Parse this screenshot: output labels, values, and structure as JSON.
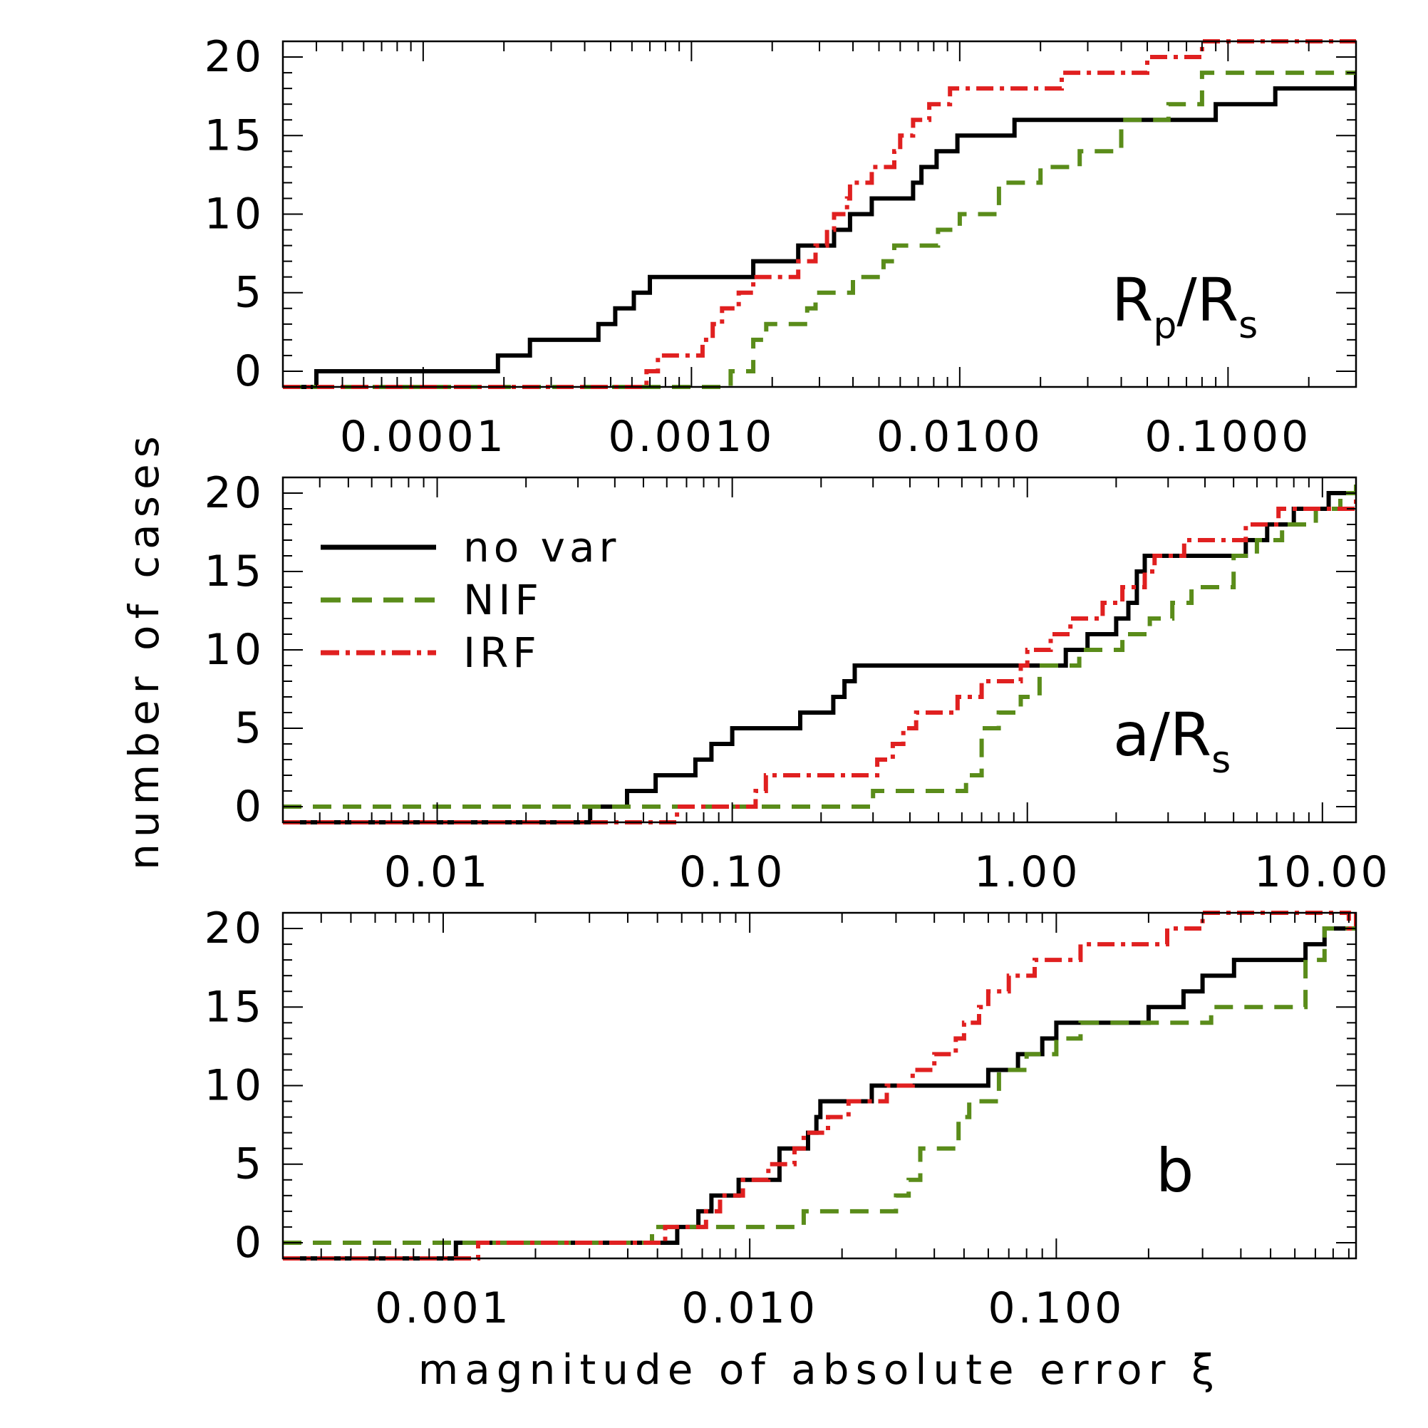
{
  "chart_data": {
    "type": "step",
    "ylabel": "number of cases",
    "xlabel": "magnitude of absolute error ξ",
    "legend": [
      {
        "name": "no var",
        "color": "#000000",
        "style": "solid"
      },
      {
        "name": "NIF",
        "color": "#5a8c1a",
        "style": "dashed"
      },
      {
        "name": "IRF",
        "color": "#e02020",
        "style": "dashdot"
      }
    ],
    "legend_location": "upper-left of middle panel",
    "panels": [
      {
        "label_main": "R",
        "label_sub1": "p",
        "label_mid": "/R",
        "label_sub2": "s",
        "xscale": "log",
        "xlim": [
          3e-05,
          0.3
        ],
        "ylim": [
          -1,
          21
        ],
        "yticks": [
          0,
          5,
          10,
          15,
          20
        ],
        "ytick_labels": [
          "0",
          "5",
          "10",
          "15",
          "20"
        ],
        "xticks": [
          0.0001,
          0.001,
          0.01,
          0.1
        ],
        "xtick_labels": [
          "0.0001",
          "0.0010",
          "0.0100",
          "0.1000"
        ],
        "series": [
          {
            "name": "no var",
            "x": [
              3e-05,
              4e-05,
              0.00019,
              0.00025,
              0.00045,
              0.00052,
              0.00061,
              0.0007,
              0.0017,
              0.0025,
              0.0034,
              0.0039,
              0.0047,
              0.0067,
              0.0072,
              0.0082,
              0.0098,
              0.016,
              0.09,
              0.15,
              0.3
            ],
            "y": [
              -1,
              0,
              1,
              2,
              3,
              4,
              5,
              6,
              7,
              8,
              9,
              10,
              11,
              12,
              13,
              14,
              15,
              16,
              17,
              18,
              19
            ]
          },
          {
            "name": "NIF",
            "x": [
              3e-05,
              0.0014,
              0.0017,
              0.0019,
              0.0027,
              0.0029,
              0.004,
              0.0052,
              0.0057,
              0.0083,
              0.01,
              0.014,
              0.02,
              0.028,
              0.04,
              0.06,
              0.08
            ],
            "y": [
              -1,
              0,
              2,
              3,
              4,
              5,
              6,
              7,
              8,
              9,
              10,
              12,
              13,
              14,
              16,
              17,
              19
            ]
          },
          {
            "name": "IRF",
            "x": [
              3e-05,
              0.00068,
              0.00075,
              0.0011,
              0.0012,
              0.0013,
              0.0015,
              0.0017,
              0.0025,
              0.0029,
              0.0032,
              0.0034,
              0.0038,
              0.0039,
              0.0047,
              0.0057,
              0.006,
              0.0067,
              0.0077,
              0.0083,
              0.0092,
              0.024,
              0.05,
              0.08
            ],
            "y": [
              -1,
              0,
              1,
              2,
              3,
              4,
              5,
              6,
              7,
              8,
              9,
              10,
              11,
              12,
              13,
              14,
              15,
              16,
              17,
              17,
              18,
              19,
              20,
              21
            ]
          }
        ]
      },
      {
        "label_main": "a/R",
        "label_sub1": "",
        "label_mid": "",
        "label_sub2": "s",
        "xscale": "log",
        "xlim": [
          0.003,
          13
        ],
        "ylim": [
          -1,
          21
        ],
        "yticks": [
          0,
          5,
          10,
          15,
          20
        ],
        "ytick_labels": [
          "0",
          "5",
          "10",
          "15",
          "20"
        ],
        "xticks": [
          0.01,
          0.1,
          1,
          10
        ],
        "xtick_labels": [
          "0.01",
          "0.10",
          "1.00",
          "10.00"
        ],
        "series": [
          {
            "name": "no var",
            "x": [
              0.003,
              0.033,
              0.044,
              0.055,
              0.075,
              0.085,
              0.1,
              0.17,
              0.22,
              0.24,
              0.26,
              0.32,
              1.35,
              1.6,
              2.0,
              2.2,
              2.35,
              2.5,
              5.5,
              6.5,
              8.0,
              10.5,
              13
            ],
            "y": [
              -1,
              0,
              1,
              2,
              3,
              4,
              5,
              6,
              7,
              8,
              9,
              9,
              10,
              11,
              12,
              13,
              15,
              16,
              17,
              18,
              19,
              20,
              20
            ]
          },
          {
            "name": "NIF",
            "x": [
              0.003,
              0.0033,
              0.3,
              0.62,
              0.7,
              0.8,
              0.95,
              1.1,
              1.5,
              2.1,
              2.6,
              3.1,
              3.6,
              5.0,
              6.0,
              7.3,
              9.5,
              11.5,
              13
            ],
            "y": [
              0,
              0,
              1,
              2,
              5,
              6,
              7,
              9,
              10,
              11,
              12,
              13,
              14,
              16,
              17,
              18,
              19,
              20,
              21
            ]
          },
          {
            "name": "IRF",
            "x": [
              0.003,
              0.065,
              0.12,
              0.13,
              0.31,
              0.35,
              0.38,
              0.42,
              0.58,
              0.7,
              0.95,
              1.0,
              1.2,
              1.4,
              1.8,
              2.1,
              2.5,
              2.7,
              3.4,
              5.5,
              7.1,
              11.5,
              13
            ],
            "y": [
              -1,
              0,
              1,
              2,
              3,
              4,
              5,
              6,
              7,
              8,
              9,
              10,
              11,
              12,
              13,
              14,
              15,
              16,
              17,
              18,
              19,
              19,
              20
            ]
          }
        ]
      },
      {
        "label_main": "b",
        "label_sub1": "",
        "label_mid": "",
        "label_sub2": "",
        "xscale": "log",
        "xlim": [
          0.0003,
          0.95
        ],
        "ylim": [
          -1,
          21
        ],
        "yticks": [
          0,
          5,
          10,
          15,
          20
        ],
        "ytick_labels": [
          "0",
          "5",
          "10",
          "15",
          "20"
        ],
        "xticks": [
          0.001,
          0.01,
          0.1
        ],
        "xtick_labels": [
          "0.001",
          "0.010",
          "0.100"
        ],
        "series": [
          {
            "name": "no var",
            "x": [
              0.0003,
              0.0011,
              0.0058,
              0.0068,
              0.0075,
              0.0092,
              0.0125,
              0.0155,
              0.0165,
              0.017,
              0.025,
              0.06,
              0.075,
              0.09,
              0.1,
              0.2,
              0.26,
              0.3,
              0.38,
              0.65,
              0.75,
              0.95
            ],
            "y": [
              -1,
              0,
              1,
              2,
              3,
              4,
              6,
              7,
              8,
              9,
              10,
              11,
              12,
              13,
              14,
              15,
              16,
              17,
              18,
              19,
              20,
              21
            ]
          },
          {
            "name": "NIF",
            "x": [
              0.0003,
              0.00032,
              0.0048,
              0.015,
              0.03,
              0.033,
              0.036,
              0.048,
              0.052,
              0.065,
              0.08,
              0.1,
              0.12,
              0.18,
              0.32,
              0.65,
              0.75,
              0.95
            ],
            "y": [
              0,
              0,
              1,
              2,
              3,
              4,
              6,
              8,
              9,
              11,
              12,
              13,
              14,
              14,
              15,
              18,
              20,
              21
            ]
          },
          {
            "name": "IRF",
            "x": [
              0.0003,
              0.0013,
              0.0053,
              0.0072,
              0.008,
              0.0095,
              0.0115,
              0.014,
              0.015,
              0.018,
              0.021,
              0.028,
              0.034,
              0.04,
              0.047,
              0.05,
              0.056,
              0.06,
              0.07,
              0.085,
              0.12,
              0.23,
              0.3,
              0.75,
              0.9,
              0.95
            ],
            "y": [
              -1,
              0,
              1,
              2,
              3,
              4,
              5,
              6,
              7,
              8,
              9,
              10,
              11,
              12,
              13,
              14,
              15,
              16,
              17,
              18,
              19,
              20,
              21,
              21,
              20,
              21
            ]
          }
        ]
      }
    ]
  }
}
